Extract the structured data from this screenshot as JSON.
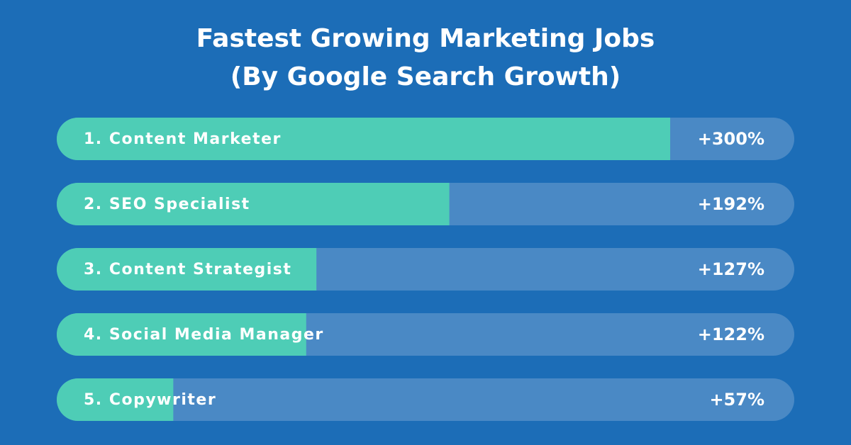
{
  "chart_data": {
    "type": "bar",
    "orientation": "horizontal",
    "title": "Fastest Growing Marketing Jobs",
    "subtitle": "(By Google Search Growth)",
    "categories": [
      "1. Content Marketer",
      "2. SEO Specialist",
      "3. Content Strategist",
      "4. Social Media Manager",
      "5. Copywriter"
    ],
    "values": [
      300,
      192,
      127,
      122,
      57
    ],
    "value_labels": [
      "+300%",
      "+192%",
      "+127%",
      "+122%",
      "+57%"
    ],
    "color": "#4ecdb6",
    "track_color": "#4a89c5"
  }
}
